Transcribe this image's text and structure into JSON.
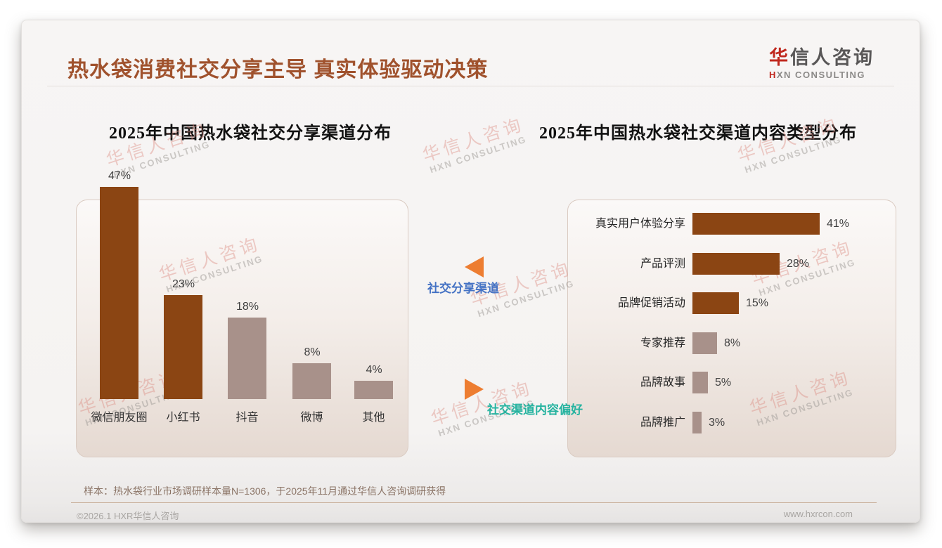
{
  "header": {
    "title": "热水袋消费社交分享主导 真实体验驱动决策",
    "logo": {
      "zh_accent": "华",
      "zh_rest": "信人咨询",
      "en_accent": "H",
      "en_rest": "XN CONSULTING"
    }
  },
  "annotations": {
    "top_label": "社交分享渠道",
    "bottom_label": "社交渠道内容偏好"
  },
  "watermark": {
    "line1": "华信人咨询",
    "line2": "HXN CONSULTING"
  },
  "footnote": "样本：热水袋行业市场调研样本量N=1306，于2025年11月通过华信人咨询调研获得",
  "footer": {
    "left": "©2026.1 HXR华信人咨询",
    "right": "www.hxrcon.com"
  },
  "colors": {
    "title_brown": "#A0522D",
    "bar_dark_brown": "#8B4513",
    "bar_mauve": "#A8918A",
    "arrow_orange": "#ED7D31",
    "label_blue": "#4472C4",
    "label_teal": "#26B3A0",
    "logo_red": "#C0281E"
  },
  "chart_data": [
    {
      "type": "bar",
      "orientation": "vertical",
      "title": "2025年中国热水袋社交分享渠道分布",
      "categories": [
        "微信朋友圈",
        "小红书",
        "抖音",
        "微博",
        "其他"
      ],
      "values": [
        47,
        23,
        18,
        8,
        4
      ],
      "unit": "%",
      "data_labels": true,
      "bar_colors": [
        "#8B4513",
        "#8B4513",
        "#A8918A",
        "#A8918A",
        "#A8918A"
      ],
      "ylim": [
        0,
        50
      ],
      "grid": false,
      "axes_visible": false
    },
    {
      "type": "bar",
      "orientation": "horizontal",
      "title": "2025年中国热水袋社交渠道内容类型分布",
      "categories": [
        "真实用户体验分享",
        "产品评测",
        "品牌促销活动",
        "专家推荐",
        "品牌故事",
        "品牌推广"
      ],
      "values": [
        41,
        28,
        15,
        8,
        5,
        3
      ],
      "unit": "%",
      "data_labels": true,
      "bar_colors": [
        "#8B4513",
        "#8B4513",
        "#8B4513",
        "#A8918A",
        "#A8918A",
        "#A8918A"
      ],
      "xlim": [
        0,
        45
      ],
      "grid": false,
      "axes_visible": false
    }
  ]
}
